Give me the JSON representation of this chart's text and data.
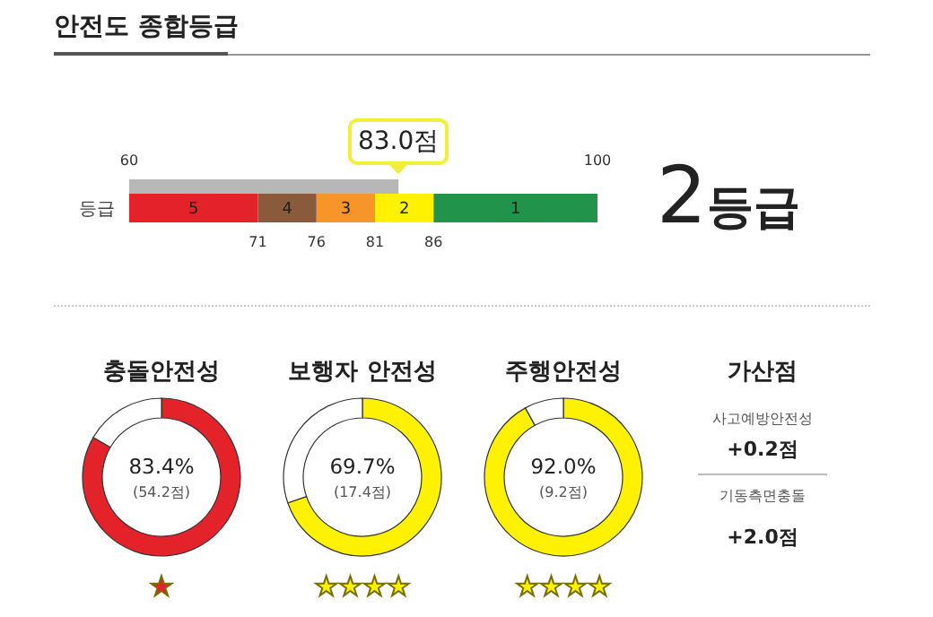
{
  "chart_data": [
    {
      "type": "bar",
      "title": "안전도 종합등급",
      "orientation": "horizontal",
      "categories": [
        null
      ],
      "xlim": [
        60,
        100
      ],
      "xticks": [
        60,
        100
      ],
      "series": [
        {
          "values": [
            83
          ],
          "color": "#b7b7b7"
        }
      ],
      "annotations": [
        "83.0점"
      ]
    },
    {
      "type": "bar",
      "orientation": "horizontal",
      "categories": [
        "등급"
      ],
      "xlim": [
        60,
        100
      ],
      "xticks": [
        71,
        76,
        81,
        86
      ],
      "series": [
        {
          "name": "5",
          "values": [
            11
          ],
          "base": [
            60
          ],
          "color": "#e3222a"
        },
        {
          "name": "4",
          "values": [
            5
          ],
          "base": [
            71
          ],
          "color": "#8a5a3c"
        },
        {
          "name": "3",
          "values": [
            5
          ],
          "base": [
            76
          ],
          "color": "#f7942a"
        },
        {
          "name": "2",
          "values": [
            5
          ],
          "base": [
            81
          ],
          "color": "#fff200"
        },
        {
          "name": "1",
          "values": [
            14
          ],
          "base": [
            86
          ],
          "color": "#21934a"
        }
      ],
      "annotations": [
        "2등급"
      ]
    },
    {
      "type": "donut",
      "title": "충돌안전성",
      "categories": [
        null,
        null
      ],
      "values": [
        83.4,
        16.6
      ],
      "colors": [
        "#e3222a",
        "#ffffff"
      ],
      "annotations": [
        "83.4%",
        "(54.2점)",
        "★"
      ]
    },
    {
      "type": "donut",
      "title": "보행자 안전성",
      "categories": [
        null,
        null
      ],
      "values": [
        69.7,
        30.3
      ],
      "colors": [
        "#fff200",
        "#ffffff"
      ],
      "annotations": [
        "69.7%",
        "(17.4점)",
        "★★★★"
      ]
    },
    {
      "type": "donut",
      "title": "주행안전성",
      "categories": [
        null,
        null
      ],
      "values": [
        92.0,
        8.0
      ],
      "colors": [
        "#fff200",
        "#ffffff"
      ],
      "annotations": [
        "92.0%",
        "(9.2점)",
        "★★★★"
      ]
    },
    {
      "type": "other",
      "title": "가산점",
      "annotations": [
        "사고예방안전성",
        "+0.2점",
        "기동측면충돌",
        "+2.0점"
      ]
    }
  ]
}
